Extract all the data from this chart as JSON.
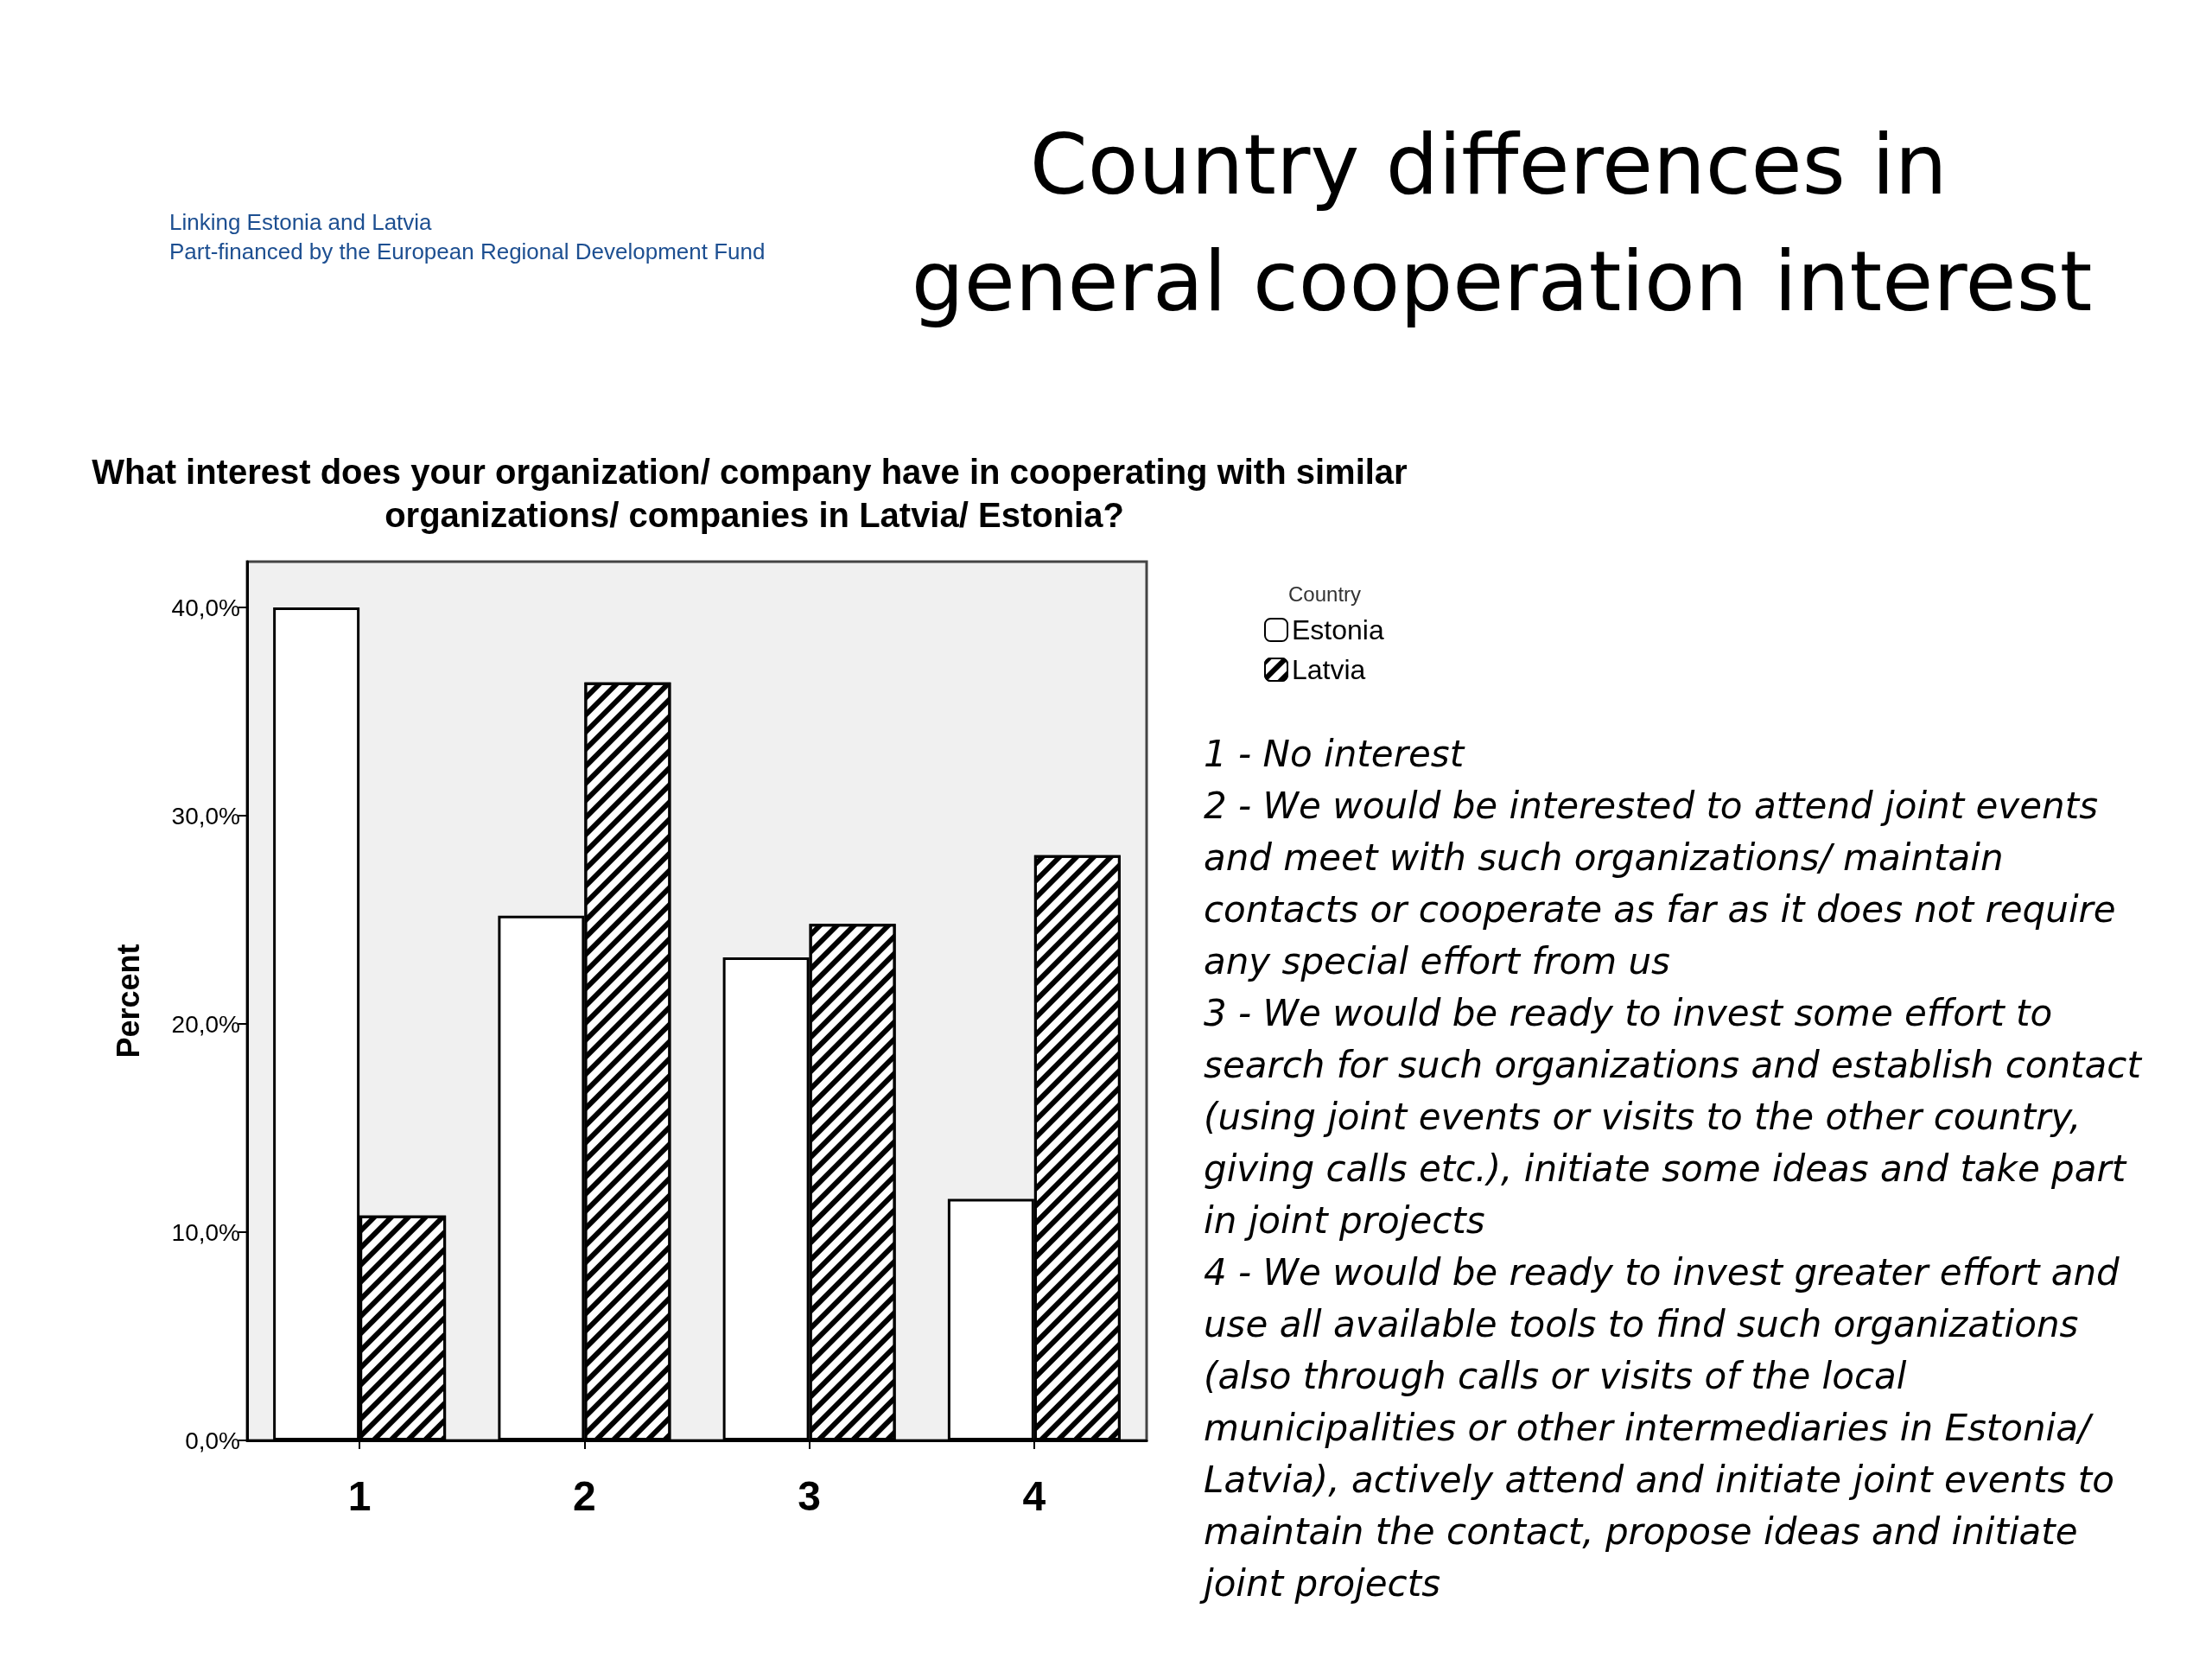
{
  "chart_data": {
    "type": "bar",
    "title": "Country differences in general cooperation interest",
    "subtitle": "What interest does your organization/ company have in cooperating with similar organizations/ companies in Latvia/ Estonia?",
    "ylabel": "Percent",
    "legend_title": "Country",
    "categories": [
      "1",
      "2",
      "3",
      "4"
    ],
    "series": [
      {
        "name": "Estonia",
        "color": "#ffffff",
        "values": [
          40,
          25.2,
          23.2,
          11.6
        ]
      },
      {
        "name": "Latvia",
        "color": "#000000",
        "values": [
          10.8,
          36.4,
          24.8,
          28.1
        ]
      }
    ],
    "ylim": [
      0,
      42.2
    ],
    "yticks": [
      {
        "value": 0,
        "label": "0,0%"
      },
      {
        "value": 10,
        "label": "10,0%"
      },
      {
        "value": 20,
        "label": "20,0%"
      },
      {
        "value": 30,
        "label": "30,0%"
      },
      {
        "value": 40,
        "label": "40,0%"
      }
    ],
    "grid": false,
    "legend": "right",
    "annotations": [
      "Linking Estonia and Latvia",
      "Part-financed by the European Regional Development Fund",
      "1 - No interest",
      "2 - We would be interested to attend joint events and meet with such organizations/ maintain contacts or cooperate as far as it does not require any special effort from us",
      "3 - We would be ready to invest some effort to search for such organizations and establish contact (using joint events or visits to the other country, giving calls etc.), initiate some ideas and take part in joint projects",
      "4 - We would be ready to invest greater effort and use all available tools to find such organizations (also through calls or visits of the local municipalities or other intermediaries in Estonia/ Latvia), actively attend and initiate joint events to maintain the contact, propose ideas and initiate joint projects"
    ]
  }
}
